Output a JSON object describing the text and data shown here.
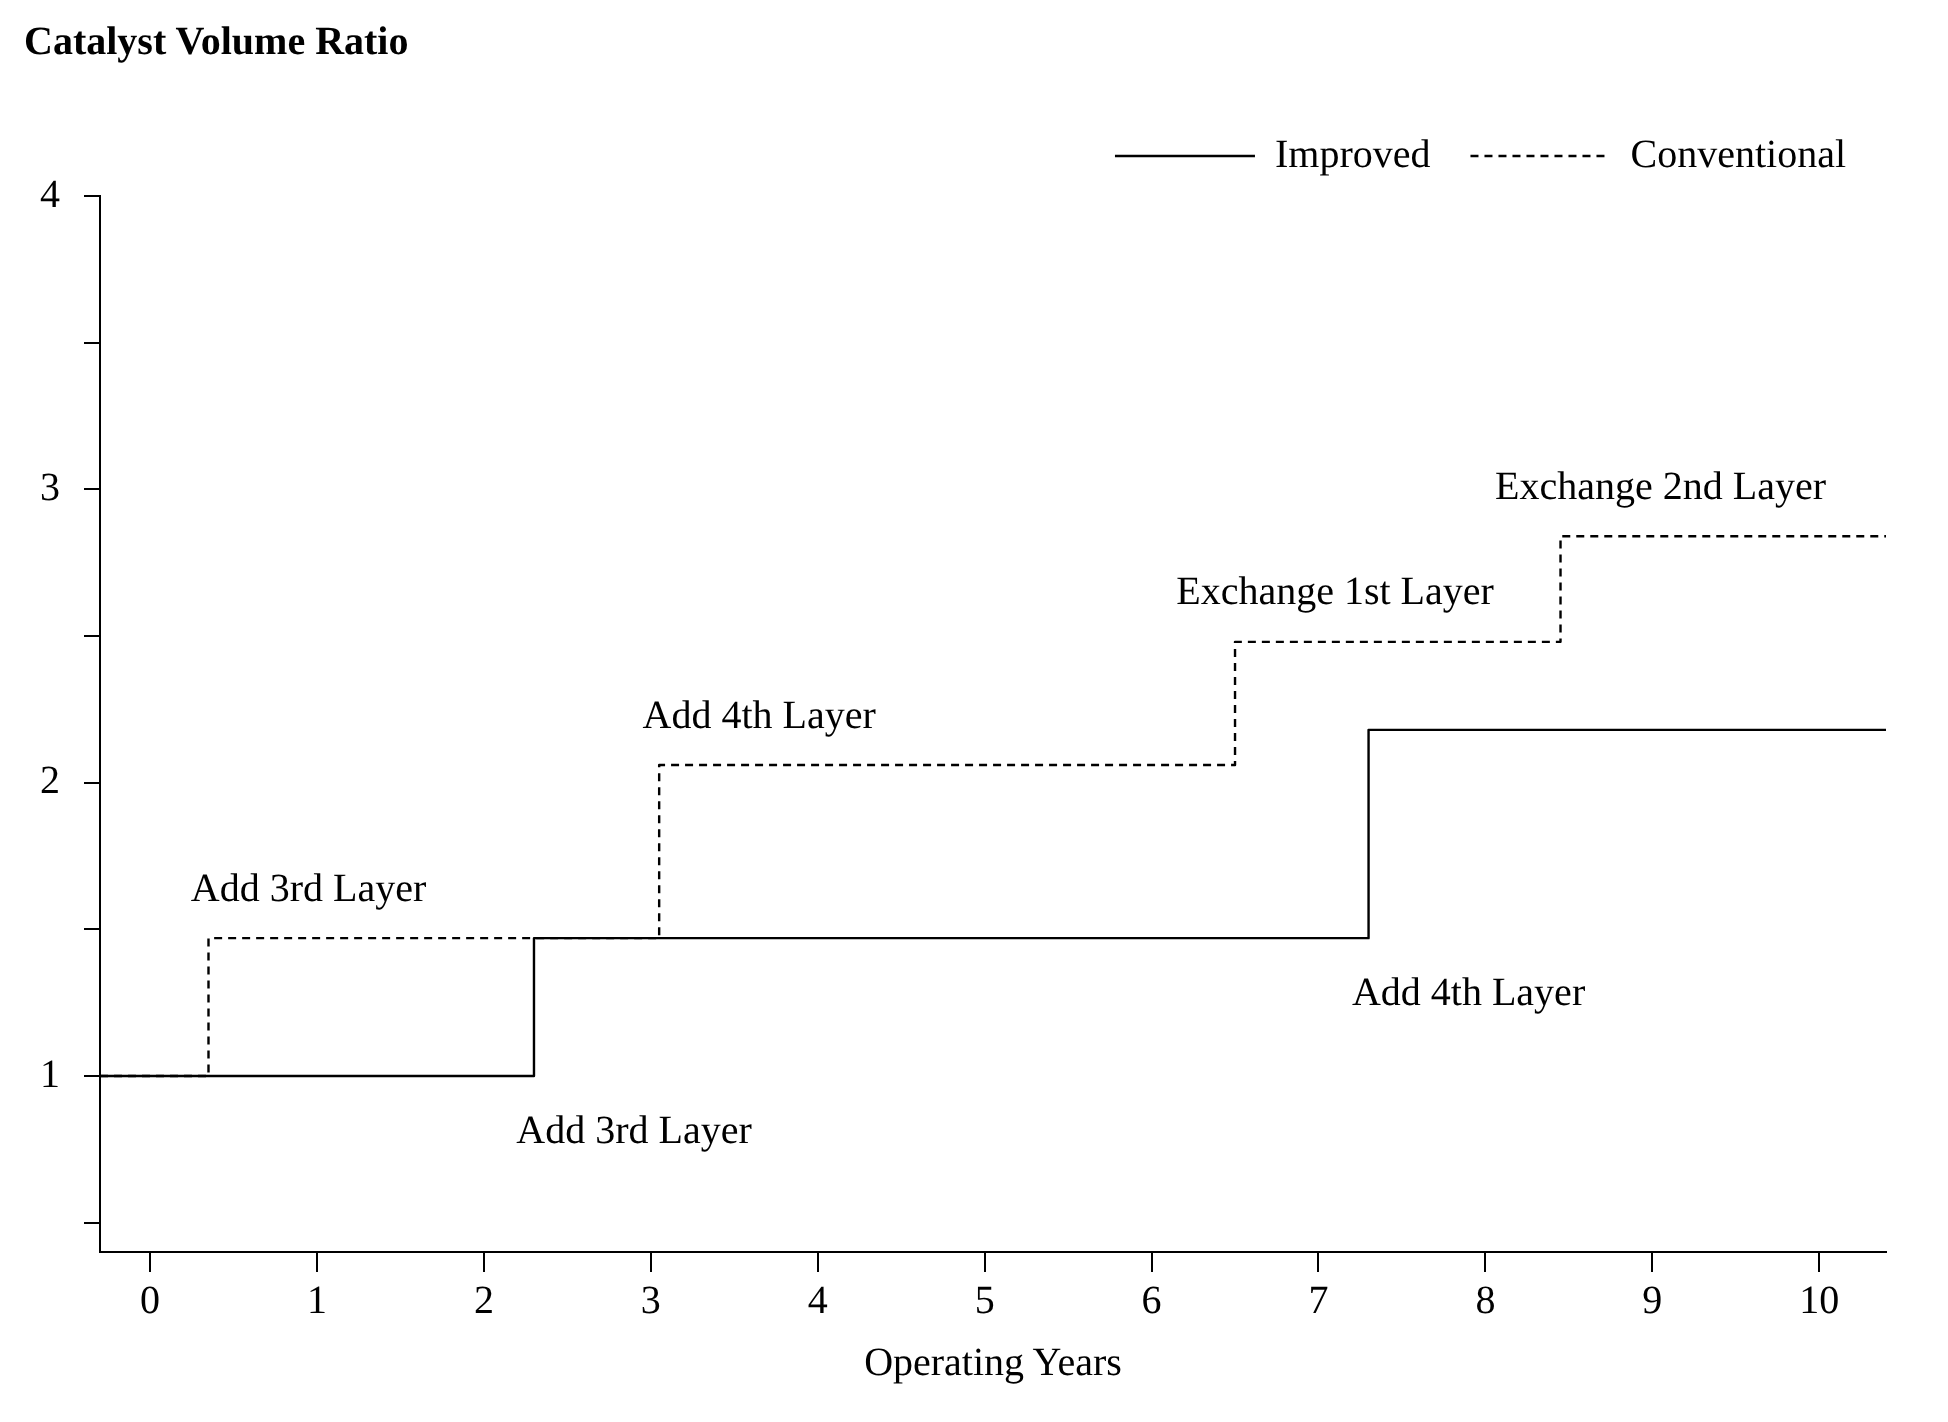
{
  "chart_data": {
    "type": "step",
    "ylabel": "Catalyst Volume Ratio",
    "xlabel": "Operating Years",
    "series": [
      {
        "name": "Improved",
        "color": "#000000",
        "line_style": "solid",
        "x": [
          -0.3,
          2.3,
          7.3,
          10.4
        ],
        "values": [
          1,
          1.47,
          2.18,
          2.18
        ]
      },
      {
        "name": "Conventional",
        "color": "#000000",
        "line_style": "dashed",
        "x": [
          -0.3,
          0.35,
          3.05,
          6.5,
          8.45,
          10.4
        ],
        "values": [
          1,
          1.47,
          2.06,
          2.48,
          2.84,
          2.84
        ]
      }
    ],
    "xlim": [
      -0.3,
      10.4
    ],
    "xticks": [
      0,
      1,
      2,
      3,
      4,
      5,
      6,
      7,
      8,
      9,
      10
    ],
    "ylim": [
      0.4,
      4
    ],
    "yticks": [
      {
        "value": 0.5,
        "label": null
      },
      1,
      {
        "value": 1.5,
        "label": null
      },
      2,
      {
        "value": 2.5,
        "label": null
      },
      3,
      {
        "value": 3.5,
        "label": null
      },
      4
    ],
    "grid": false,
    "legend": "top right",
    "marker": "none",
    "annotations": [
      {
        "text": "Add 3rd Layer",
        "x": 0.35,
        "y": 1.47
      },
      {
        "text": "Add 3rd Layer",
        "x": 2.3,
        "y": 1
      },
      {
        "text": "Add 4th Layer",
        "x": 3.05,
        "y": 2.06
      },
      {
        "text": "Add 4th Layer",
        "x": 7.3,
        "y": 1.47
      },
      {
        "text": "Exchange 1st Layer",
        "x": 6.5,
        "y": 2.48
      },
      {
        "text": "Exchange 2nd Layer",
        "x": 8.45,
        "y": 2.84
      }
    ]
  }
}
